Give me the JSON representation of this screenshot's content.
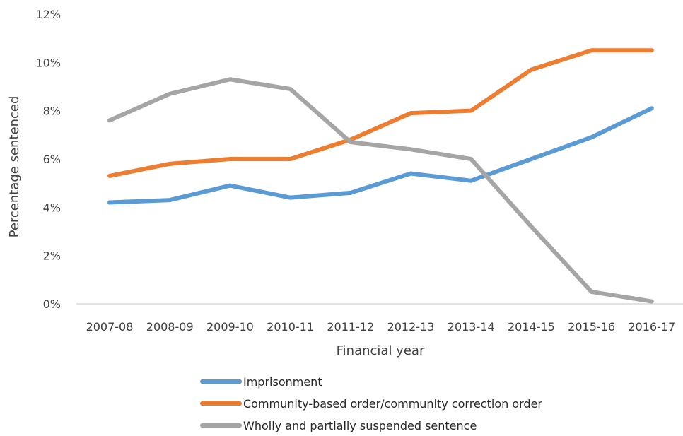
{
  "chart_data": {
    "type": "line",
    "title": "",
    "xlabel": "Financial year",
    "ylabel": "Percentage sentenced",
    "categories": [
      "2007-08",
      "2008-09",
      "2009-10",
      "2010-11",
      "2011-12",
      "2012-13",
      "2013-14",
      "2014-15",
      "2015-16",
      "2016-17"
    ],
    "ylim": [
      0,
      12
    ],
    "yticks": [
      0,
      2,
      4,
      6,
      8,
      10,
      12
    ],
    "ytick_labels": [
      "0%",
      "2%",
      "4%",
      "6%",
      "8%",
      "10%",
      "12%"
    ],
    "grid": false,
    "legend_position": "bottom",
    "series": [
      {
        "name": "Imprisonment",
        "color": "#5b9bd5",
        "values": [
          4.2,
          4.3,
          4.9,
          4.4,
          4.6,
          5.4,
          5.1,
          6.0,
          6.9,
          8.1
        ]
      },
      {
        "name": "Community-based order/community correction order",
        "color": "#ed7d31",
        "values": [
          5.3,
          5.8,
          6.0,
          6.0,
          6.8,
          7.9,
          8.0,
          9.7,
          10.5,
          10.5
        ]
      },
      {
        "name": "Wholly and partially suspended sentence",
        "color": "#a5a5a5",
        "values": [
          7.6,
          8.7,
          9.3,
          8.9,
          6.7,
          6.4,
          6.0,
          3.2,
          0.5,
          0.1
        ]
      }
    ]
  }
}
